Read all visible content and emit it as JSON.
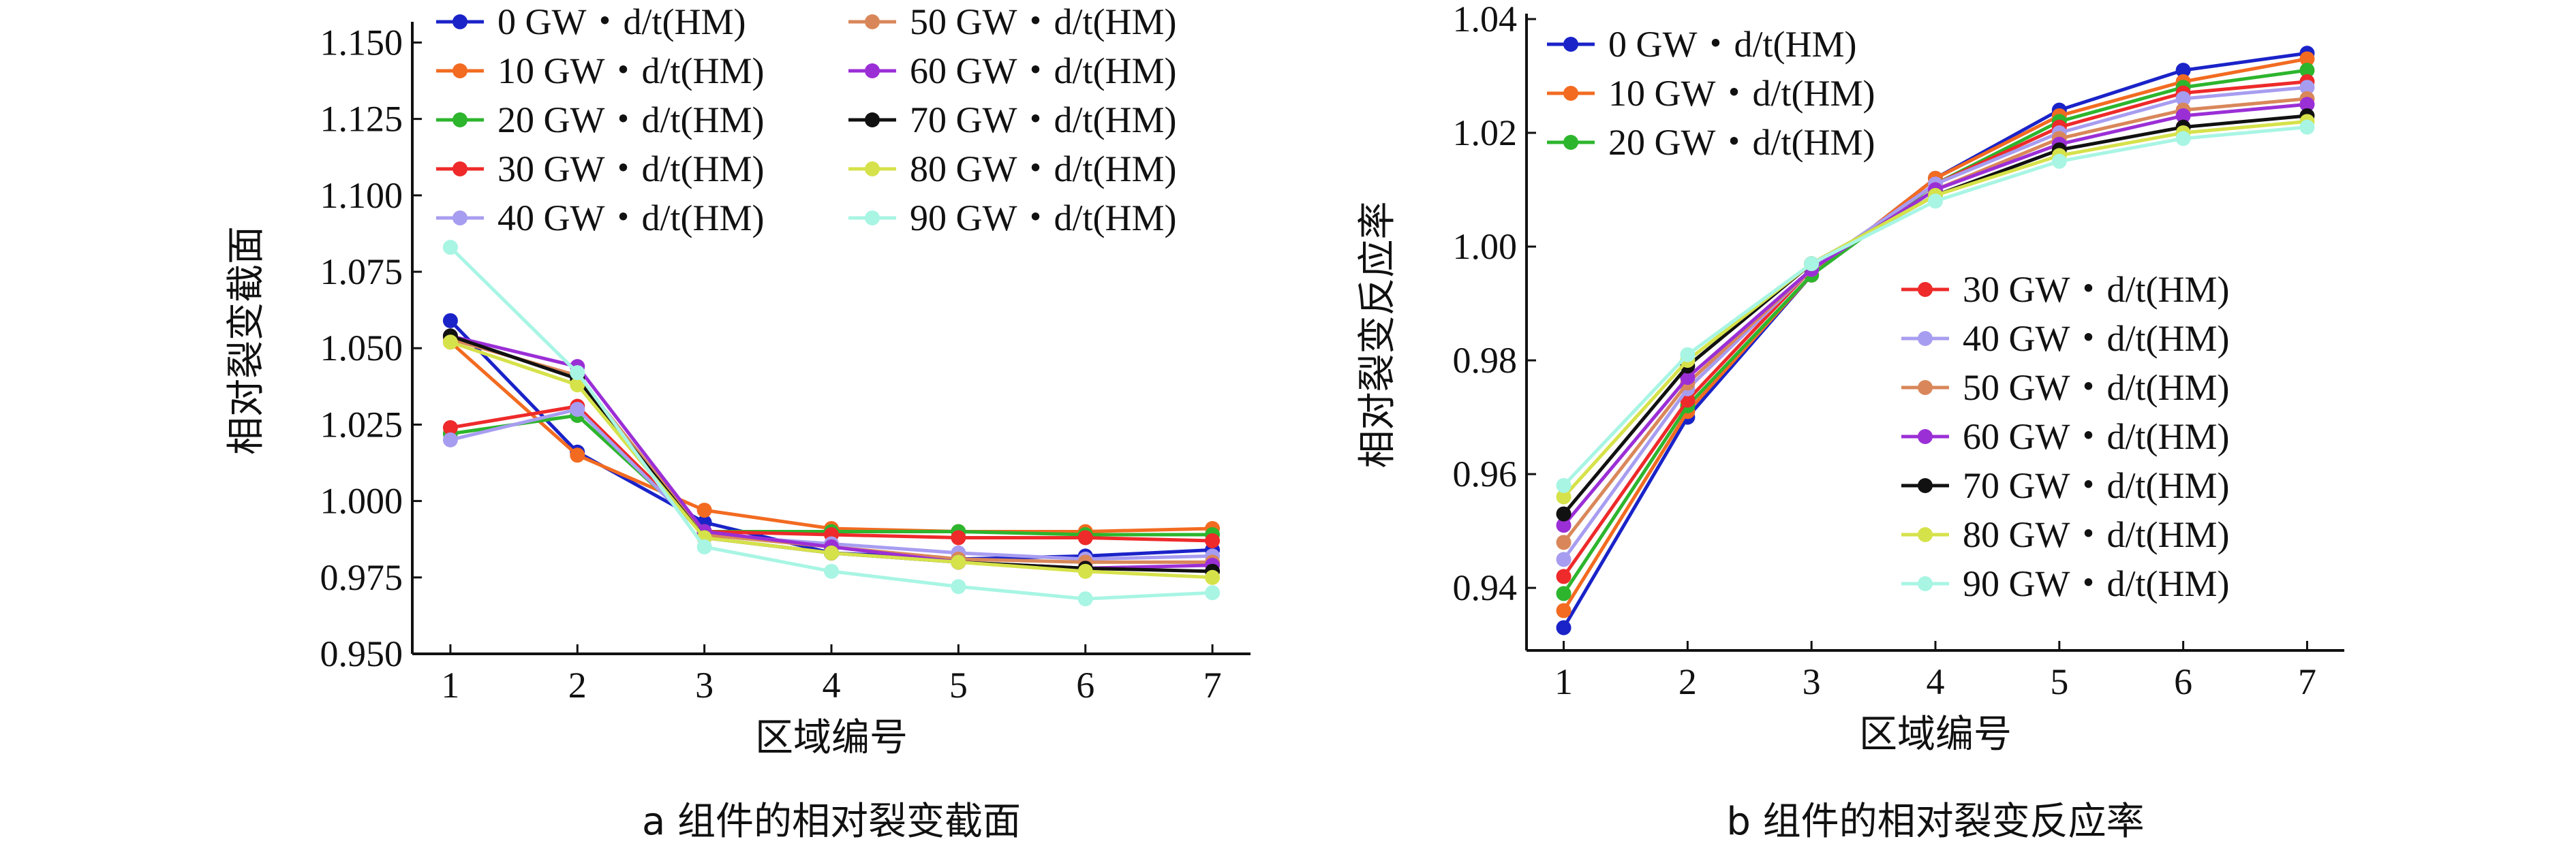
{
  "chart_data": [
    {
      "type": "line",
      "panel_caption": "a  组件的相对裂变截面",
      "xlabel": "区域编号",
      "ylabel": "相对裂变截面",
      "x": [
        1,
        2,
        3,
        4,
        5,
        6,
        7
      ],
      "xlim": [
        0.7,
        7.3
      ],
      "ylim": [
        0.95,
        1.155
      ],
      "yticks": [
        "0.950",
        "0.975",
        "1.000",
        "1.025",
        "1.050",
        "1.075",
        "1.100",
        "1.125",
        "1.150"
      ],
      "ytick_values": [
        0.95,
        0.975,
        1.0,
        1.025,
        1.05,
        1.075,
        1.1,
        1.125,
        1.15
      ],
      "legend_position": "top, two columns",
      "series": [
        {
          "name": "0 GW・d/t(HM)",
          "color": "#1a23c8",
          "values": [
            1.059,
            1.016,
            0.993,
            0.983,
            0.981,
            0.982,
            0.984
          ]
        },
        {
          "name": "10 GW・d/t(HM)",
          "color": "#f26b21",
          "values": [
            1.052,
            1.015,
            0.997,
            0.991,
            0.99,
            0.99,
            0.991
          ]
        },
        {
          "name": "20 GW・d/t(HM)",
          "color": "#2db52d",
          "values": [
            1.022,
            1.028,
            0.99,
            0.99,
            0.99,
            0.989,
            0.989
          ]
        },
        {
          "name": "30 GW・d/t(HM)",
          "color": "#ee2a2a",
          "values": [
            1.024,
            1.031,
            0.99,
            0.989,
            0.988,
            0.988,
            0.987
          ]
        },
        {
          "name": "40 GW・d/t(HM)",
          "color": "#a79df0",
          "values": [
            1.02,
            1.03,
            0.989,
            0.986,
            0.983,
            0.981,
            0.982
          ]
        },
        {
          "name": "50 GW・d/t(HM)",
          "color": "#d9875a",
          "values": [
            1.053,
            1.041,
            0.989,
            0.985,
            0.981,
            0.98,
            0.98
          ]
        },
        {
          "name": "60 GW・d/t(HM)",
          "color": "#9b2fd6",
          "values": [
            1.054,
            1.044,
            0.99,
            0.985,
            0.98,
            0.978,
            0.979
          ]
        },
        {
          "name": "70 GW・d/t(HM)",
          "color": "#111111",
          "values": [
            1.054,
            1.04,
            0.988,
            0.983,
            0.98,
            0.978,
            0.977
          ]
        },
        {
          "name": "80 GW・d/t(HM)",
          "color": "#d6e24a",
          "values": [
            1.052,
            1.038,
            0.988,
            0.983,
            0.98,
            0.977,
            0.975
          ]
        },
        {
          "name": "90 GW・d/t(HM)",
          "color": "#a8f5e4",
          "values": [
            1.083,
            1.042,
            0.985,
            0.977,
            0.972,
            0.968,
            0.97
          ]
        }
      ]
    },
    {
      "type": "line",
      "panel_caption": "b  组件的相对裂变反应率",
      "xlabel": "区域编号",
      "ylabel": "相对裂变反应率",
      "x": [
        1,
        2,
        3,
        4,
        5,
        6,
        7
      ],
      "xlim": [
        0.7,
        7.3
      ],
      "ylim": [
        0.929,
        1.04
      ],
      "yticks": [
        "0.94",
        "0.96",
        "0.98",
        "1.00",
        "1.02",
        "1.04"
      ],
      "ytick_values": [
        0.94,
        0.96,
        0.98,
        1.0,
        1.02,
        1.04
      ],
      "legend_position": "upper-left (0–20) and lower-right (30–90)",
      "legend_group_1": [
        0,
        1,
        2
      ],
      "legend_group_2": [
        3,
        4,
        5,
        6,
        7,
        8,
        9
      ],
      "series": [
        {
          "name": "0 GW・d/t(HM)",
          "color": "#1a23c8",
          "values": [
            0.933,
            0.97,
            0.995,
            1.012,
            1.024,
            1.031,
            1.034
          ]
        },
        {
          "name": "10 GW・d/t(HM)",
          "color": "#f26b21",
          "values": [
            0.936,
            0.971,
            0.995,
            1.012,
            1.023,
            1.029,
            1.033
          ]
        },
        {
          "name": "20 GW・d/t(HM)",
          "color": "#2db52d",
          "values": [
            0.939,
            0.972,
            0.995,
            1.011,
            1.022,
            1.028,
            1.031
          ]
        },
        {
          "name": "30 GW・d/t(HM)",
          "color": "#ee2a2a",
          "values": [
            0.942,
            0.973,
            0.996,
            1.011,
            1.021,
            1.027,
            1.029
          ]
        },
        {
          "name": "40 GW・d/t(HM)",
          "color": "#a79df0",
          "values": [
            0.945,
            0.975,
            0.996,
            1.011,
            1.02,
            1.026,
            1.028
          ]
        },
        {
          "name": "50 GW・d/t(HM)",
          "color": "#d9875a",
          "values": [
            0.948,
            0.976,
            0.996,
            1.01,
            1.019,
            1.024,
            1.026
          ]
        },
        {
          "name": "60 GW・d/t(HM)",
          "color": "#9b2fd6",
          "values": [
            0.951,
            0.977,
            0.996,
            1.01,
            1.018,
            1.023,
            1.025
          ]
        },
        {
          "name": "70 GW・d/t(HM)",
          "color": "#111111",
          "values": [
            0.953,
            0.979,
            0.997,
            1.009,
            1.017,
            1.021,
            1.023
          ]
        },
        {
          "name": "80 GW・d/t(HM)",
          "color": "#d6e24a",
          "values": [
            0.956,
            0.98,
            0.997,
            1.009,
            1.016,
            1.02,
            1.022
          ]
        },
        {
          "name": "90 GW・d/t(HM)",
          "color": "#a8f5e4",
          "values": [
            0.958,
            0.981,
            0.997,
            1.008,
            1.015,
            1.019,
            1.021
          ]
        }
      ]
    }
  ]
}
